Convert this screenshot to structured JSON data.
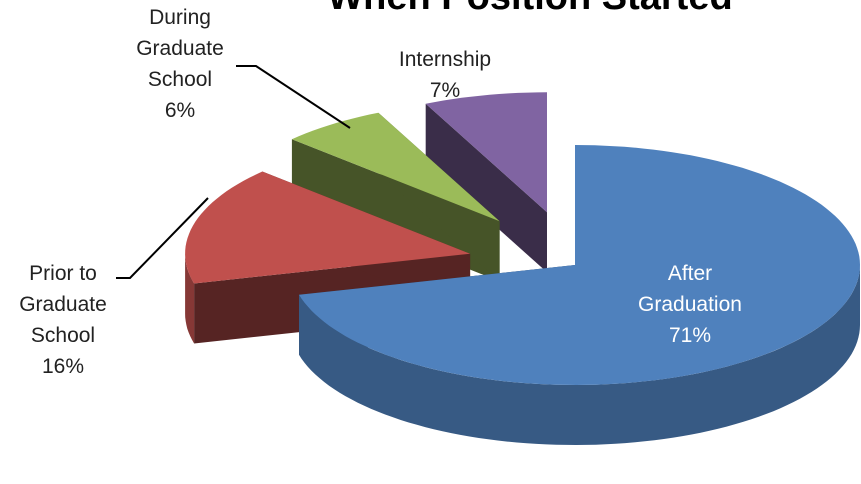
{
  "chart_data": {
    "type": "pie",
    "title": "When Position Started",
    "categories": [
      "After Graduation",
      "Prior to Graduate School",
      "During Graduate School",
      "Internship"
    ],
    "values": [
      71,
      16,
      6,
      7
    ],
    "value_labels": [
      "71%",
      "16%",
      "6%",
      "7%"
    ],
    "colors": [
      "#4f81bd",
      "#c0504d",
      "#9bbb59",
      "#8064a2"
    ]
  }
}
